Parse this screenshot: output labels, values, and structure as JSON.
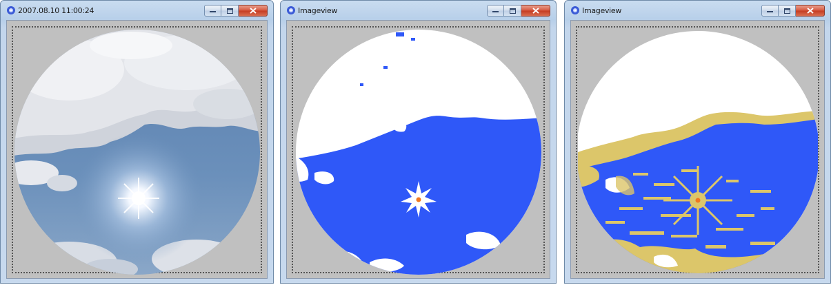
{
  "windows": [
    {
      "id": "photo",
      "title": "2007.08.10 11:00:24"
    },
    {
      "id": "classification",
      "title": "Imageview"
    },
    {
      "id": "classification-alt",
      "title": "Imageview"
    }
  ],
  "controls": {
    "minimize_icon": "minimize-icon",
    "maximize_icon": "maximize-icon",
    "close_icon": "close-icon"
  },
  "colors": {
    "clear_sky": "#2f58f8",
    "cloud": "#ffffff",
    "thin_cloud": "#dcc66a",
    "sun": "#f07820",
    "window_background": "#c0c0c0"
  }
}
